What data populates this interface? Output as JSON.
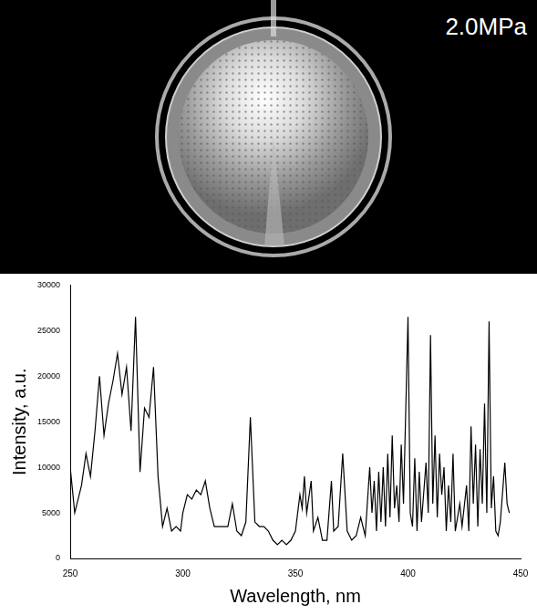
{
  "photo": {
    "label": "2.0MPa"
  },
  "chart_data": {
    "type": "line",
    "x_label": "Wavelength, nm",
    "y_label": "Intensity, a.u.",
    "x": [
      250,
      252,
      255,
      257,
      259,
      261,
      263,
      265,
      267,
      269,
      271,
      273,
      275,
      277,
      279,
      281,
      283,
      285,
      287,
      289,
      291,
      293,
      295,
      297,
      299,
      300,
      302,
      304,
      306,
      308,
      310,
      312,
      314,
      316,
      318,
      320,
      322,
      324,
      326,
      328,
      330,
      332,
      334,
      336,
      338,
      340,
      342,
      344,
      346,
      348,
      350,
      352,
      353,
      354,
      355,
      357,
      358,
      360,
      362,
      364,
      366,
      367,
      369,
      371,
      373,
      375,
      377,
      379,
      381,
      383,
      384,
      385,
      386,
      387,
      388,
      389,
      390,
      391,
      392,
      393,
      394,
      395,
      396,
      397,
      398,
      400,
      401,
      402,
      403,
      404,
      405,
      406,
      408,
      409,
      410,
      411,
      412,
      413,
      414,
      415,
      416,
      417,
      418,
      419,
      420,
      421,
      423,
      424,
      426,
      427,
      428,
      429,
      430,
      431,
      432,
      433,
      434,
      435,
      436,
      437,
      438,
      439,
      440,
      441,
      443,
      444,
      445
    ],
    "values": [
      10000,
      5000,
      8000,
      11500,
      9000,
      14000,
      20000,
      13500,
      17000,
      19500,
      22500,
      18000,
      21000,
      14000,
      26500,
      9500,
      16500,
      15500,
      21000,
      9000,
      3500,
      5500,
      3000,
      3500,
      3000,
      5000,
      7000,
      6500,
      7500,
      7000,
      8500,
      5500,
      3500,
      3500,
      3500,
      3500,
      6000,
      3000,
      2500,
      4000,
      15500,
      4000,
      3500,
      3500,
      3000,
      2000,
      1500,
      2000,
      1500,
      2000,
      3000,
      7000,
      5500,
      9000,
      5000,
      8500,
      3000,
      4500,
      2000,
      2000,
      8500,
      3000,
      3500,
      11500,
      3000,
      2000,
      2500,
      4500,
      2500,
      10000,
      5000,
      8500,
      3000,
      9500,
      4000,
      10000,
      3500,
      11500,
      4500,
      13500,
      5500,
      8000,
      4000,
      12500,
      6000,
      26500,
      5000,
      3500,
      11000,
      3000,
      9500,
      4000,
      10500,
      5000,
      24500,
      6000,
      13500,
      4500,
      11500,
      7000,
      10000,
      3000,
      8000,
      4000,
      11500,
      3000,
      6000,
      3500,
      8000,
      3000,
      14500,
      6000,
      12500,
      3500,
      12000,
      6000,
      17000,
      5000,
      26000,
      5500,
      9000,
      3000,
      2500,
      4000,
      10500,
      6000,
      5000
    ],
    "color": "#000000",
    "xlim": [
      250,
      450
    ],
    "xticks": [
      250,
      300,
      350,
      400,
      450
    ],
    "ylim": [
      0,
      30000
    ],
    "yticks": [
      0,
      5000,
      10000,
      15000,
      20000,
      25000,
      30000
    ],
    "grid": false
  }
}
